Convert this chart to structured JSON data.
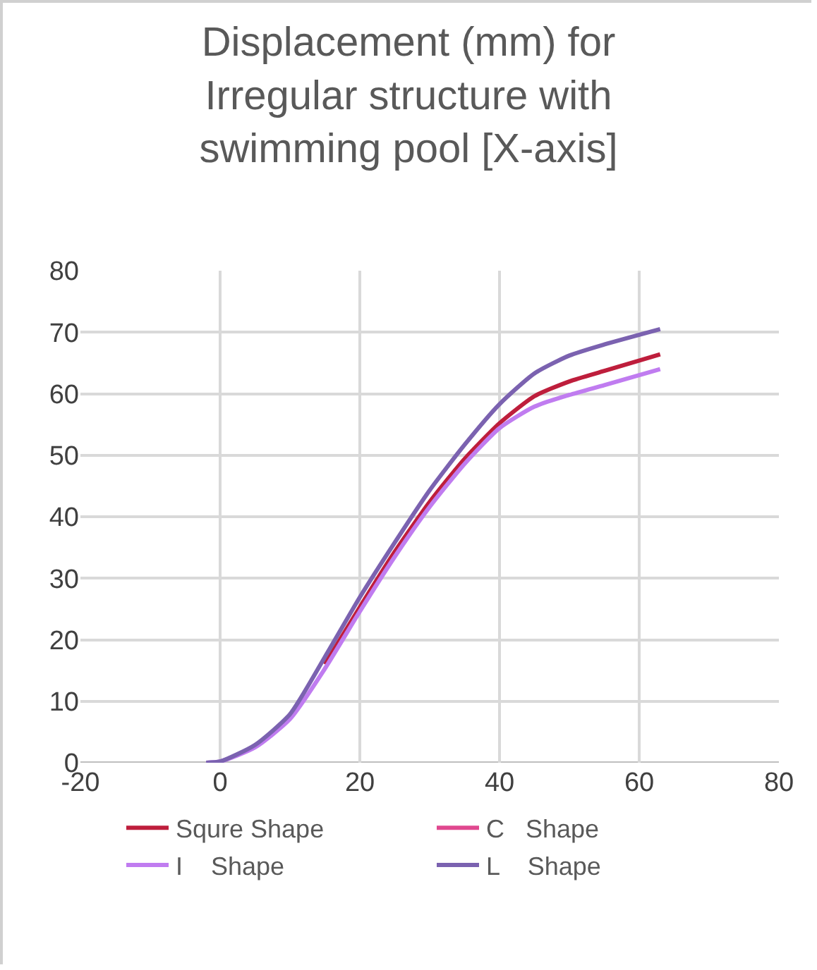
{
  "chart_data": {
    "type": "line",
    "title": "Displacement (mm) for Irregular structure with swimming pool [X-axis]",
    "x": [
      -2,
      0,
      5,
      10,
      15,
      20,
      25,
      30,
      35,
      40,
      45,
      50,
      55,
      63
    ],
    "series": [
      {
        "name": "Squre Shape",
        "color": "#be1e3c",
        "values": [
          null,
          null,
          null,
          null,
          16,
          25.3,
          34.3,
          42.4,
          49.4,
          55.2,
          59.6,
          62,
          63.7,
          66.4
        ]
      },
      {
        "name": "C   Shape",
        "color": "#e0488f",
        "values": [
          null,
          null,
          null,
          null,
          null,
          null,
          null,
          null,
          null,
          null,
          null,
          null,
          null,
          null
        ]
      },
      {
        "name": "I    Shape",
        "color": "#c07cf0",
        "values": [
          0,
          0.2,
          2.5,
          7.1,
          15.3,
          24.6,
          33.5,
          41.6,
          48.6,
          54.4,
          57.9,
          59.8,
          61.4,
          64
        ]
      },
      {
        "name": "L    Shape",
        "color": "#7b62b0",
        "values": [
          0,
          0.2,
          2.9,
          7.9,
          17.2,
          26.9,
          35.8,
          44.3,
          51.7,
          58.3,
          63.3,
          66.2,
          68,
          70.5
        ]
      }
    ],
    "xlim": [
      -20,
      80
    ],
    "xticks": [
      -20,
      0,
      20,
      40,
      60,
      80
    ],
    "ylim": [
      0,
      80
    ],
    "yticks": [
      0,
      10,
      20,
      30,
      40,
      50,
      60,
      70,
      80
    ],
    "grid": true,
    "legend": "bottom",
    "marker": "none",
    "line_style": "solid"
  }
}
